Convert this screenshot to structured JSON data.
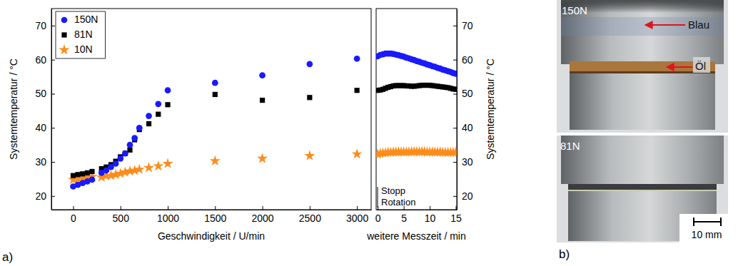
{
  "chart_data": [
    {
      "type": "scatter",
      "x_label": "Geschwindigkeit / U/min",
      "y_label": "Systemtemperatur / °C",
      "x": [
        0,
        50,
        100,
        150,
        200,
        300,
        350,
        400,
        450,
        500,
        550,
        600,
        650,
        700,
        800,
        900,
        1000,
        1500,
        2000,
        2500,
        3000
      ],
      "series": [
        {
          "name": "150N",
          "color": "#1a1aff",
          "marker": "circle",
          "values": [
            22.8,
            23.3,
            23.8,
            24.3,
            24.8,
            26.8,
            27.5,
            28.5,
            29.5,
            31.0,
            32.5,
            35.0,
            37.0,
            40.0,
            43.5,
            47.0,
            51.0,
            53.2,
            55.4,
            58.7,
            60.3
          ]
        },
        {
          "name": "81N",
          "color": "#000000",
          "marker": "square",
          "values": [
            26.0,
            26.3,
            26.5,
            26.8,
            27.2,
            28.0,
            28.5,
            29.2,
            30.2,
            31.5,
            32.5,
            33.5,
            36.5,
            39.5,
            41.2,
            44.0,
            46.8,
            49.8,
            48.1,
            48.9,
            51.0
          ]
        },
        {
          "name": "10N",
          "color": "#ff8c1a",
          "marker": "star",
          "values": [
            24.8,
            25.0,
            25.2,
            25.5,
            25.7,
            25.5,
            25.9,
            26.0,
            26.3,
            26.6,
            27.0,
            27.3,
            27.5,
            27.8,
            28.3,
            28.8,
            29.5,
            30.3,
            31.0,
            31.8,
            32.3
          ]
        }
      ],
      "xlim": [
        -230,
        3150
      ],
      "xticks": [
        0,
        500,
        1000,
        1500,
        2000,
        2500,
        3000
      ],
      "ylim": [
        16,
        75
      ],
      "yticks": [
        20,
        30,
        40,
        50,
        60,
        70
      ],
      "legend": "upper left"
    },
    {
      "type": "scatter",
      "x_label": "weitere Messzeit / min",
      "y_label": "Systemtemperatur / °C",
      "annotations": [
        {
          "text": "Stopp Rotation"
        }
      ],
      "x": [
        0,
        0.5,
        1,
        1.5,
        2,
        2.5,
        3,
        3.5,
        4,
        4.5,
        5,
        5.5,
        6,
        6.5,
        7,
        7.5,
        8,
        8.5,
        9,
        9.5,
        10,
        10.5,
        11,
        11.5,
        12,
        12.5,
        13,
        13.5,
        14,
        14.5,
        15
      ],
      "series": [
        {
          "color": "#1a1aff",
          "marker": "circle",
          "values": [
            61.0,
            61.4,
            61.6,
            61.8,
            61.8,
            61.8,
            61.7,
            61.5,
            61.3,
            61.1,
            60.9,
            60.6,
            60.4,
            60.1,
            59.9,
            59.6,
            59.4,
            59.1,
            58.9,
            58.6,
            58.4,
            58.1,
            57.9,
            57.6,
            57.4,
            57.1,
            56.9,
            56.6,
            56.4,
            56.1,
            55.9
          ]
        },
        {
          "color": "#000000",
          "marker": "square",
          "values": [
            51.0,
            51.1,
            51.3,
            51.6,
            51.9,
            52.1,
            52.3,
            52.4,
            52.4,
            52.4,
            52.4,
            52.3,
            52.3,
            52.2,
            52.2,
            52.3,
            52.4,
            52.5,
            52.5,
            52.5,
            52.5,
            52.4,
            52.3,
            52.2,
            52.1,
            52.0,
            51.9,
            51.8,
            51.6,
            51.4,
            51.3
          ]
        },
        {
          "color": "#ff8c1a",
          "marker": "star",
          "values": [
            32.3,
            32.5,
            32.6,
            32.7,
            32.8,
            32.8,
            32.9,
            32.9,
            32.9,
            32.9,
            32.9,
            32.9,
            32.9,
            33.0,
            33.0,
            33.0,
            33.0,
            33.0,
            33.0,
            32.9,
            32.9,
            32.9,
            32.9,
            32.9,
            32.9,
            32.8,
            32.8,
            32.8,
            32.8,
            32.8,
            32.8
          ]
        }
      ],
      "xlim": [
        -0.3,
        15.2
      ],
      "xticks": [
        0,
        5,
        10,
        15
      ],
      "ylim": [
        16,
        75
      ],
      "yticks": [
        20,
        30,
        40,
        50,
        60,
        70
      ]
    }
  ],
  "panel_labels": [
    "a)",
    "b)"
  ],
  "photos": {
    "panels": [
      {
        "label": "150N",
        "annotations": [
          "Blau",
          "Öl"
        ]
      },
      {
        "label": "81N"
      }
    ],
    "scale_bar": "10 mm"
  }
}
